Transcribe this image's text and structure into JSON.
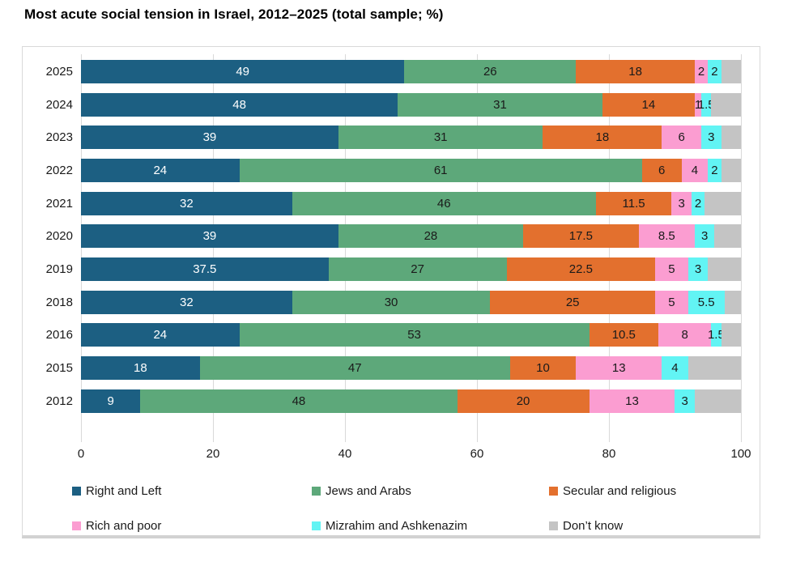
{
  "title": "Most acute social tension in Israel, 2012–2025 (total sample; %)",
  "chart_data": {
    "type": "bar",
    "orientation": "horizontal",
    "stacked": true,
    "title": "Most acute social tension in Israel, 2012–2025 (total sample; %)",
    "categories": [
      "2025",
      "2024",
      "2023",
      "2022",
      "2021",
      "2020",
      "2019",
      "2018",
      "2016",
      "2015",
      "2012"
    ],
    "series": [
      {
        "name": "Right and Left",
        "color": "#1c5f82",
        "label_color": "#ffffff",
        "show_labels": true,
        "values": [
          49,
          48,
          39,
          24,
          32,
          39,
          37.5,
          32,
          24,
          18,
          9
        ]
      },
      {
        "name": "Jews and Arabs",
        "color": "#5da87a",
        "label_color": "#1a1a1a",
        "show_labels": true,
        "values": [
          26,
          31,
          31,
          61,
          46,
          28,
          27,
          30,
          53,
          47,
          48
        ]
      },
      {
        "name": "Secular and religious",
        "color": "#e3702e",
        "label_color": "#1a1a1a",
        "show_labels": true,
        "values": [
          18,
          14,
          18,
          6,
          11.5,
          17.5,
          22.5,
          25,
          10.5,
          10,
          20
        ]
      },
      {
        "name": "Rich and poor",
        "color": "#fb9dd1",
        "label_color": "#1a1a1a",
        "show_labels": true,
        "values": [
          2,
          1,
          6,
          4,
          3,
          8.5,
          5,
          5,
          8,
          13,
          13
        ]
      },
      {
        "name": "Mizrahim and Ashkenazim",
        "color": "#62f4f4",
        "label_color": "#1a1a1a",
        "show_labels": true,
        "values": [
          2,
          1.5,
          3,
          2,
          2,
          3,
          3,
          5.5,
          1.5,
          4,
          3
        ]
      },
      {
        "name": "Don’t know",
        "color": "#c4c4c4",
        "label_color": "#1a1a1a",
        "show_labels": false,
        "values": [
          3,
          4.5,
          3,
          3,
          5.5,
          4,
          5,
          2.5,
          3,
          8,
          7
        ]
      }
    ],
    "xlabel": "",
    "ylabel": "",
    "xlim": [
      0,
      100
    ],
    "x_ticks": [
      0,
      20,
      40,
      60,
      80,
      100
    ],
    "x_tick_labels": [
      "0",
      "20",
      "40",
      "60",
      "80",
      "100"
    ],
    "grid": "vertical",
    "legend_position": "bottom",
    "gridline_color": "#d9d9d9"
  }
}
